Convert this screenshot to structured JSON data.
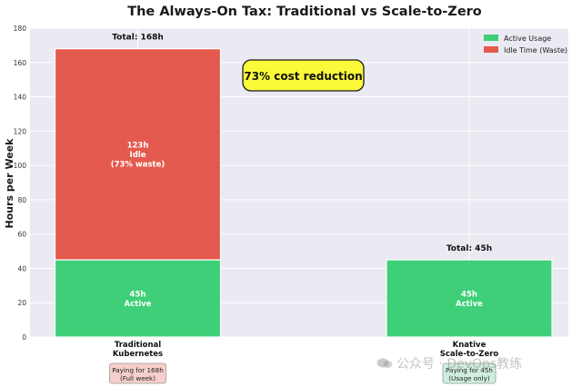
{
  "chart_data": {
    "type": "bar",
    "stacked": true,
    "title": "The Always-On Tax: Traditional vs Scale-to-Zero",
    "ylabel": "Hours per Week",
    "xlabel": "",
    "ylim": [
      0,
      180
    ],
    "yticks": [
      0,
      20,
      40,
      60,
      80,
      100,
      120,
      140,
      160,
      180
    ],
    "grid": true,
    "legend_position": "top-right",
    "categories": [
      {
        "line1": "Traditional",
        "line2": "Kubernetes"
      },
      {
        "line1": "Knative",
        "line2": "Scale-to-Zero"
      }
    ],
    "series": [
      {
        "name": "Active Usage",
        "color": "#3ecf78",
        "values": [
          45,
          45
        ],
        "labels": [
          [
            "45h",
            "Active"
          ],
          [
            "45h",
            "Active"
          ]
        ]
      },
      {
        "name": "Idle Time (Waste)",
        "color": "#e55a4e",
        "values": [
          123,
          0
        ],
        "labels": [
          [
            "123h",
            "Idle",
            "(73% waste)"
          ],
          []
        ]
      }
    ],
    "totals": [
      "Total: 168h",
      "Total: 45h"
    ],
    "callout": "73% cost reduction",
    "callout_color": "#fafa3a",
    "payment_notes": [
      {
        "line1": "Paying for 168h",
        "line2": "(Full week)",
        "color": "#f6cfcb"
      },
      {
        "line1": "Paying for 45h",
        "line2": "(Usage only)",
        "color": "#cfeedd"
      }
    ],
    "plot_background": "#eaeaf2"
  },
  "watermark": {
    "text": "公众号 · DevOps教练",
    "icon": "chat-bubble-icon"
  }
}
